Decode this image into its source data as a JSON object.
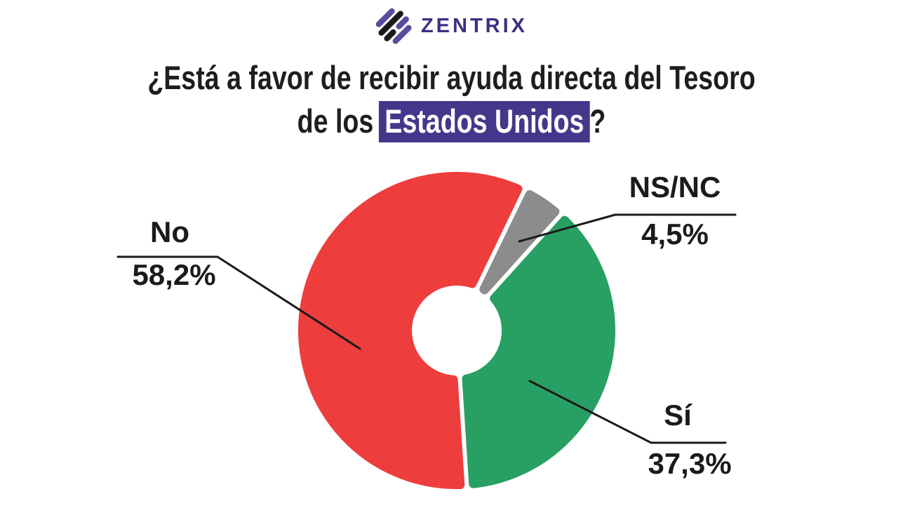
{
  "logo": {
    "brand": "ZENTRIX",
    "icon": "diagonal-stripes-diamond",
    "wordmark_color": "#3A3184",
    "icon_purple": "#5B4B9E",
    "icon_black": "#1B1B1B"
  },
  "title": {
    "line1": "¿Está a favor de recibir ayuda directa del Tesoro",
    "line2_prefix": "de los",
    "line2_highlight": "Estados Unidos",
    "line2_suffix": "?",
    "highlight_bg": "#46368B",
    "highlight_text_color": "#FFFFFF"
  },
  "chart_data": {
    "type": "pie",
    "donut": true,
    "title": "¿Está a favor de recibir ayuda directa del Tesoro de los Estados Unidos?",
    "slices": [
      {
        "key": "no",
        "label": "No",
        "value_pct": 58.2,
        "display_value": "58,2%",
        "color": "#EE3D3D"
      },
      {
        "key": "si",
        "label": "Sí",
        "value_pct": 37.3,
        "display_value": "37,3%",
        "color": "#28A063"
      },
      {
        "key": "nsnc",
        "label": "NS/NC",
        "value_pct": 4.5,
        "display_value": "4,5%",
        "color": "#8C8C8C"
      }
    ],
    "draw_order": [
      1,
      0,
      2
    ],
    "rotation_deg_clockwise_from_top": 42,
    "inner_radius_ratio": 0.29,
    "labels_style": "external-callouts-with-leader-lines",
    "legend_position": "none",
    "background": "#FFFFFF"
  }
}
